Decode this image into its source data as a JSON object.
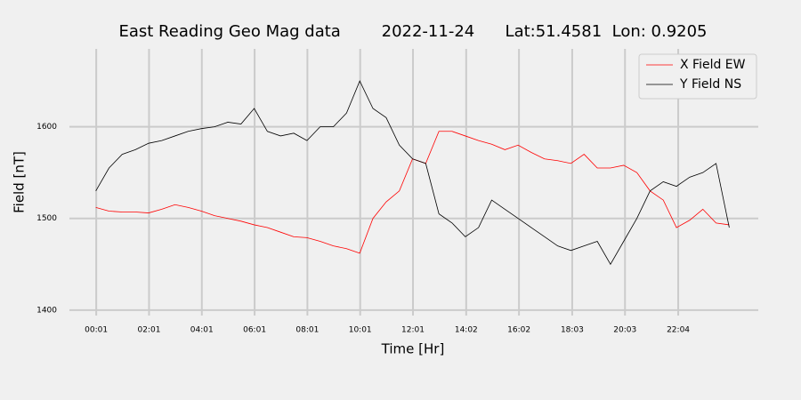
{
  "chart_data": {
    "type": "line",
    "title": "East Reading Geo Mag data        2022-11-24      Lat:51.4581  Lon: 0.9205",
    "x_label": "Time  [Hr]",
    "y_label": "Field  [nT]",
    "x": [
      0,
      0.5,
      1,
      1.5,
      2,
      2.5,
      3,
      3.5,
      4,
      4.5,
      5,
      5.5,
      6,
      6.5,
      7,
      7.5,
      8,
      8.5,
      9,
      9.5,
      10,
      10.5,
      11,
      11.5,
      12,
      12.5,
      13,
      13.5,
      14,
      14.5,
      15,
      15.5,
      16,
      16.5,
      17,
      17.5,
      18,
      18.5,
      19,
      19.5,
      20,
      20.5,
      21,
      21.5,
      22,
      22.5,
      23,
      23.5,
      24
    ],
    "series": [
      {
        "name": "X Field EW",
        "color": "#ff0000",
        "values": [
          1512,
          1508,
          1507,
          1507,
          1506,
          1510,
          1515,
          1512,
          1508,
          1503,
          1500,
          1497,
          1493,
          1490,
          1485,
          1480,
          1479,
          1475,
          1470,
          1467,
          1462,
          1500,
          1518,
          1530,
          1565,
          1560,
          1595,
          1595,
          1590,
          1585,
          1581,
          1575,
          1580,
          1572,
          1565,
          1563,
          1560,
          1570,
          1555,
          1555,
          1558,
          1550,
          1530,
          1520,
          1490,
          1498,
          1510,
          1495,
          1493
        ]
      },
      {
        "name": "Y Field NS",
        "color": "#000000",
        "values": [
          1530,
          1555,
          1570,
          1575,
          1582,
          1585,
          1590,
          1595,
          1598,
          1600,
          1605,
          1603,
          1620,
          1595,
          1590,
          1593,
          1585,
          1600,
          1600,
          1615,
          1650,
          1620,
          1610,
          1580,
          1565,
          1560,
          1505,
          1495,
          1480,
          1490,
          1520,
          1510,
          1500,
          1490,
          1480,
          1470,
          1465,
          1470,
          1475,
          1450,
          1475,
          1500,
          1530,
          1540,
          1535,
          1545,
          1550,
          1560,
          1490
        ]
      }
    ],
    "xlim": [
      -1.0,
      25.1
    ],
    "ylim": [
      1394,
      1685
    ],
    "xticks": [
      {
        "value": 0.0167,
        "label": "00:01"
      },
      {
        "value": 2.0167,
        "label": "02:01"
      },
      {
        "value": 4.0167,
        "label": "04:01"
      },
      {
        "value": 6.0167,
        "label": "06:01"
      },
      {
        "value": 8.0167,
        "label": "08:01"
      },
      {
        "value": 10.0167,
        "label": "10:01"
      },
      {
        "value": 12.0167,
        "label": "12:01"
      },
      {
        "value": 14.0333,
        "label": "14:02"
      },
      {
        "value": 16.0333,
        "label": "16:02"
      },
      {
        "value": 18.05,
        "label": "18:03"
      },
      {
        "value": 20.05,
        "label": "20:03"
      },
      {
        "value": 22.0667,
        "label": "22:04"
      }
    ],
    "yticks": [
      1400,
      1500,
      1600
    ],
    "grid": true,
    "legend": "upper right"
  }
}
